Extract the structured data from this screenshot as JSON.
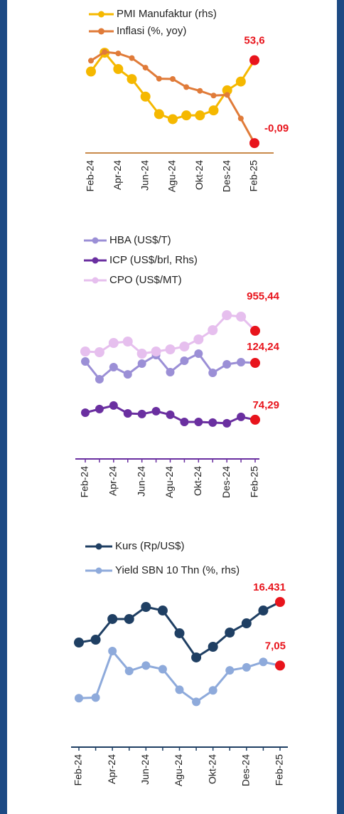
{
  "chart_data": [
    {
      "type": "line",
      "categories": [
        "Feb-24",
        null,
        "Apr-24",
        null,
        "Jun-24",
        null,
        "Agu-24",
        null,
        "Okt-24",
        null,
        "Des-24",
        null,
        "Feb-25"
      ],
      "series": [
        {
          "name": "PMI Manufaktur (rhs)",
          "color": "#f5b800",
          "axis": "y2",
          "values": [
            52.7,
            54.2,
            52.9,
            52.1,
            50.7,
            49.3,
            48.9,
            49.2,
            49.2,
            49.6,
            51.2,
            51.9,
            53.6
          ],
          "value_labels": [
            null,
            null,
            null,
            null,
            null,
            null,
            null,
            null,
            null,
            null,
            null,
            null,
            "53,6"
          ]
        },
        {
          "name": "Inflasi (%, yoy)",
          "color": "#e07b39",
          "values": [
            2.75,
            3.05,
            3.0,
            2.84,
            2.51,
            2.13,
            2.12,
            1.84,
            1.71,
            1.55,
            1.57,
            0.76,
            -0.09
          ],
          "value_labels": [
            null,
            null,
            null,
            null,
            null,
            null,
            null,
            null,
            null,
            null,
            null,
            null,
            "-0,09"
          ]
        }
      ],
      "ylim": [
        -0.43,
        3.37
      ],
      "y2lim": [
        46.2,
        55.0
      ]
    },
    {
      "type": "line",
      "categories": [
        "Feb-24",
        null,
        "Apr-24",
        null,
        "Jun-24",
        null,
        "Agu-24",
        null,
        "Okt-24",
        null,
        "Des-24",
        null,
        "Feb-25"
      ],
      "series": [
        {
          "name": "HBA (US$/T)",
          "color": "#9b8fd6",
          "axis": "y2",
          "values": [
            125.5,
            109.9,
            120.5,
            114.2,
            123.6,
            131.1,
            116.1,
            126.1,
            132.4,
            115.5,
            123.0,
            124.9,
            124.24
          ],
          "value_labels": [
            null,
            null,
            null,
            null,
            null,
            null,
            null,
            null,
            null,
            null,
            null,
            null,
            "124,24"
          ]
        },
        {
          "name": "ICP (US$/brl, Rhs)",
          "color": "#6a2fa0",
          "axis": "y2",
          "values": [
            80.5,
            83.7,
            86.8,
            79.9,
            79.3,
            81.8,
            78.7,
            72.4,
            72.4,
            71.8,
            71.2,
            76.8,
            74.29
          ],
          "value_labels": [
            null,
            null,
            null,
            null,
            null,
            null,
            null,
            null,
            null,
            null,
            null,
            null,
            "74,29"
          ]
        },
        {
          "name": "CPO (US$/MT)",
          "color": "#e6bfee",
          "values": [
            810,
            805,
            870,
            880,
            795,
            810,
            825,
            845,
            895,
            960,
            1065,
            1055,
            955.44
          ],
          "value_labels": [
            null,
            null,
            null,
            null,
            null,
            null,
            null,
            null,
            null,
            null,
            null,
            null,
            "955,44"
          ]
        }
      ],
      "ylim": [
        80,
        1180
      ],
      "y2lim": [
        43,
        180.5
      ]
    },
    {
      "type": "line",
      "categories": [
        "Feb-24",
        null,
        "Apr-24",
        null,
        "Jun-24",
        null,
        "Agu-24",
        null,
        "Okt-24",
        null,
        "Des-24",
        null,
        "Feb-25"
      ],
      "series": [
        {
          "name": "Kurs (Rp/US$)",
          "color": "#1f3f63",
          "values": [
            15487,
            15553,
            16034,
            16034,
            16315,
            16232,
            15703,
            15140,
            15388,
            15719,
            15934,
            16232,
            16431
          ],
          "value_labels": [
            null,
            null,
            null,
            null,
            null,
            null,
            null,
            null,
            null,
            null,
            null,
            null,
            "16.431"
          ]
        },
        {
          "name": "Yield SBN 10 Thn (%, rhs)",
          "color": "#8eaadb",
          "axis": "y2",
          "values": [
            6.51,
            6.52,
            7.29,
            6.96,
            7.05,
            6.99,
            6.65,
            6.45,
            6.64,
            6.97,
            7.02,
            7.11,
            7.05
          ],
          "value_labels": [
            null,
            null,
            null,
            null,
            null,
            null,
            null,
            null,
            null,
            null,
            null,
            null,
            "7,05"
          ]
        }
      ],
      "ylim": [
        13136,
        16696
      ],
      "y2lim": [
        5.76,
        8.29
      ]
    }
  ]
}
